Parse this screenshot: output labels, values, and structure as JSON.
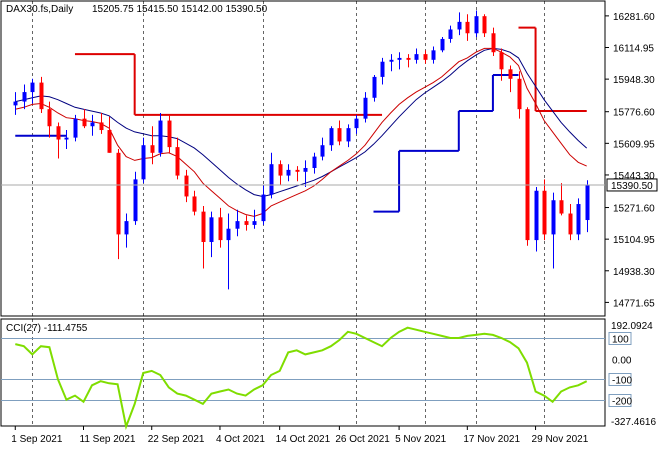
{
  "header": {
    "symbol": "DAX30.fs,Daily",
    "ohlc": "15205.75 15415.50 15142.00 15390.50"
  },
  "price_axis": {
    "ticks": [
      "16281.60",
      "16114.95",
      "15948.30",
      "15776.60",
      "15609.95",
      "15443.30",
      "15271.60",
      "15104.95",
      "14938.30",
      "14771.65"
    ],
    "current_label": "15390.50"
  },
  "cci": {
    "label": "CCI(27) -111.4755",
    "top_label": "192.0924",
    "bottom_label": "-327.4616",
    "levels": [
      "100",
      "0.00",
      "-100",
      "-200"
    ]
  },
  "x_axis": {
    "labels": [
      "1 Sep 2021",
      "11 Sep 2021",
      "22 Sep 2021",
      "4 Oct 2021",
      "14 Oct 2021",
      "26 Oct 2021",
      "5 Nov 2021",
      "17 Nov 2021",
      "29 Nov 2021"
    ]
  },
  "colors": {
    "bull": "#0000ff",
    "bear": "#ff0000",
    "ma_fast": "#cc0000",
    "ma_slow": "#000080",
    "stop_up": "#0000cc",
    "stop_down": "#dd0000",
    "cci_line": "#7fdd00",
    "grid": "#aaaaaa",
    "level": "#7f9fbf"
  },
  "chart_data": [
    {
      "type": "candlestick",
      "title": "DAX30.fs,Daily",
      "ylim": [
        14700,
        16360
      ],
      "x": [
        "2021-09-01",
        "2021-12-03"
      ],
      "candles": [
        {
          "o": 15810,
          "h": 15880,
          "l": 15760,
          "c": 15830
        },
        {
          "o": 15830,
          "h": 15920,
          "l": 15790,
          "c": 15880
        },
        {
          "o": 15880,
          "h": 15950,
          "l": 15820,
          "c": 15930
        },
        {
          "o": 15930,
          "h": 15960,
          "l": 15770,
          "c": 15790
        },
        {
          "o": 15790,
          "h": 15830,
          "l": 15640,
          "c": 15700
        },
        {
          "o": 15700,
          "h": 15720,
          "l": 15530,
          "c": 15630
        },
        {
          "o": 15630,
          "h": 15680,
          "l": 15580,
          "c": 15640
        },
        {
          "o": 15640,
          "h": 15760,
          "l": 15620,
          "c": 15740
        },
        {
          "o": 15740,
          "h": 15790,
          "l": 15690,
          "c": 15700
        },
        {
          "o": 15700,
          "h": 15760,
          "l": 15650,
          "c": 15720
        },
        {
          "o": 15720,
          "h": 15770,
          "l": 15660,
          "c": 15680
        },
        {
          "o": 15680,
          "h": 15750,
          "l": 15560,
          "c": 15560
        },
        {
          "o": 15560,
          "h": 15580,
          "l": 15000,
          "c": 15130
        },
        {
          "o": 15130,
          "h": 15240,
          "l": 15060,
          "c": 15200
        },
        {
          "o": 15200,
          "h": 15460,
          "l": 15180,
          "c": 15420
        },
        {
          "o": 15420,
          "h": 15640,
          "l": 15400,
          "c": 15600
        },
        {
          "o": 15600,
          "h": 15700,
          "l": 15500,
          "c": 15560
        },
        {
          "o": 15560,
          "h": 15770,
          "l": 15540,
          "c": 15730
        },
        {
          "o": 15730,
          "h": 15760,
          "l": 15560,
          "c": 15590
        },
        {
          "o": 15590,
          "h": 15640,
          "l": 15420,
          "c": 15440
        },
        {
          "o": 15440,
          "h": 15470,
          "l": 15300,
          "c": 15330
        },
        {
          "o": 15330,
          "h": 15360,
          "l": 15230,
          "c": 15250
        },
        {
          "o": 15250,
          "h": 15280,
          "l": 14950,
          "c": 15090
        },
        {
          "o": 15090,
          "h": 15250,
          "l": 15010,
          "c": 15220
        },
        {
          "o": 15220,
          "h": 15270,
          "l": 15060,
          "c": 15100
        },
        {
          "o": 15100,
          "h": 15240,
          "l": 14840,
          "c": 15160
        },
        {
          "o": 15160,
          "h": 15260,
          "l": 15120,
          "c": 15200
        },
        {
          "o": 15200,
          "h": 15230,
          "l": 15150,
          "c": 15180
        },
        {
          "o": 15180,
          "h": 15260,
          "l": 15160,
          "c": 15200
        },
        {
          "o": 15200,
          "h": 15390,
          "l": 15180,
          "c": 15340
        },
        {
          "o": 15340,
          "h": 15560,
          "l": 15320,
          "c": 15500
        },
        {
          "o": 15500,
          "h": 15520,
          "l": 15390,
          "c": 15440
        },
        {
          "o": 15440,
          "h": 15500,
          "l": 15410,
          "c": 15470
        },
        {
          "o": 15470,
          "h": 15490,
          "l": 15410,
          "c": 15460
        },
        {
          "o": 15460,
          "h": 15520,
          "l": 15380,
          "c": 15480
        },
        {
          "o": 15480,
          "h": 15560,
          "l": 15450,
          "c": 15540
        },
        {
          "o": 15540,
          "h": 15640,
          "l": 15520,
          "c": 15600
        },
        {
          "o": 15600,
          "h": 15700,
          "l": 15570,
          "c": 15690
        },
        {
          "o": 15690,
          "h": 15730,
          "l": 15600,
          "c": 15620
        },
        {
          "o": 15620,
          "h": 15710,
          "l": 15590,
          "c": 15690
        },
        {
          "o": 15690,
          "h": 15760,
          "l": 15660,
          "c": 15740
        },
        {
          "o": 15740,
          "h": 15880,
          "l": 15720,
          "c": 15850
        },
        {
          "o": 15850,
          "h": 15970,
          "l": 15830,
          "c": 15960
        },
        {
          "o": 15960,
          "h": 16060,
          "l": 15920,
          "c": 16040
        },
        {
          "o": 16040,
          "h": 16080,
          "l": 15990,
          "c": 16050
        },
        {
          "o": 16050,
          "h": 16090,
          "l": 16000,
          "c": 16060
        },
        {
          "o": 16060,
          "h": 16080,
          "l": 16010,
          "c": 16050
        },
        {
          "o": 16050,
          "h": 16110,
          "l": 16030,
          "c": 16080
        },
        {
          "o": 16080,
          "h": 16100,
          "l": 16030,
          "c": 16050
        },
        {
          "o": 16050,
          "h": 16120,
          "l": 16030,
          "c": 16100
        },
        {
          "o": 16100,
          "h": 16170,
          "l": 16090,
          "c": 16160
        },
        {
          "o": 16160,
          "h": 16230,
          "l": 16140,
          "c": 16210
        },
        {
          "o": 16210,
          "h": 16300,
          "l": 16180,
          "c": 16250
        },
        {
          "o": 16250,
          "h": 16290,
          "l": 16150,
          "c": 16190
        },
        {
          "o": 16190,
          "h": 16310,
          "l": 16170,
          "c": 16280
        },
        {
          "o": 16280,
          "h": 16290,
          "l": 16170,
          "c": 16190
        },
        {
          "o": 16190,
          "h": 16220,
          "l": 16070,
          "c": 16090
        },
        {
          "o": 16090,
          "h": 16110,
          "l": 15940,
          "c": 16000
        },
        {
          "o": 16000,
          "h": 16020,
          "l": 15880,
          "c": 15950
        },
        {
          "o": 15950,
          "h": 15990,
          "l": 15740,
          "c": 15790
        },
        {
          "o": 15790,
          "h": 15800,
          "l": 15070,
          "c": 15100
        },
        {
          "o": 15100,
          "h": 15380,
          "l": 15040,
          "c": 15360
        },
        {
          "o": 15360,
          "h": 15420,
          "l": 15100,
          "c": 15130
        },
        {
          "o": 15130,
          "h": 15350,
          "l": 14950,
          "c": 15310
        },
        {
          "o": 15310,
          "h": 15400,
          "l": 15230,
          "c": 15240
        },
        {
          "o": 15240,
          "h": 15290,
          "l": 15100,
          "c": 15130
        },
        {
          "o": 15130,
          "h": 15320,
          "l": 15100,
          "c": 15290
        },
        {
          "o": 15205.75,
          "h": 15415.5,
          "l": 15142,
          "c": 15390.5
        }
      ],
      "ma_fast": [
        15790,
        15800,
        15815,
        15820,
        15800,
        15770,
        15745,
        15740,
        15730,
        15725,
        15715,
        15690,
        15600,
        15540,
        15520,
        15530,
        15535,
        15555,
        15560,
        15540,
        15500,
        15460,
        15400,
        15360,
        15320,
        15280,
        15255,
        15235,
        15225,
        15240,
        15280,
        15300,
        15320,
        15340,
        15360,
        15385,
        15420,
        15460,
        15490,
        15520,
        15555,
        15600,
        15660,
        15720,
        15770,
        15815,
        15850,
        15880,
        15905,
        15930,
        15960,
        16000,
        16040,
        16060,
        16090,
        16110,
        16110,
        16090,
        16065,
        16020,
        15900,
        15820,
        15730,
        15670,
        15610,
        15550,
        15510,
        15490
      ],
      "ma_slow": [
        15830,
        15840,
        15850,
        15860,
        15855,
        15840,
        15820,
        15800,
        15790,
        15780,
        15770,
        15755,
        15720,
        15690,
        15670,
        15660,
        15650,
        15650,
        15645,
        15635,
        15610,
        15585,
        15550,
        15510,
        15470,
        15430,
        15395,
        15365,
        15340,
        15330,
        15340,
        15355,
        15370,
        15385,
        15400,
        15415,
        15435,
        15460,
        15485,
        15510,
        15535,
        15565,
        15605,
        15650,
        15700,
        15750,
        15795,
        15840,
        15875,
        15905,
        15935,
        15970,
        16010,
        16045,
        16075,
        16100,
        16110,
        16105,
        16090,
        16060,
        15980,
        15910,
        15840,
        15780,
        15720,
        15670,
        15625,
        15585
      ],
      "stop_up": [
        {
          "from": 0,
          "to": 6,
          "value": 15650
        },
        {
          "from": 42,
          "to": 45,
          "value": 15250
        },
        {
          "from": 45,
          "to": 52,
          "value": 15570
        },
        {
          "from": 52,
          "to": 56,
          "value": 15780
        },
        {
          "from": 56,
          "to": 59,
          "value": 15970
        }
      ],
      "stop_down": [
        {
          "from": 7,
          "to": 14,
          "value": 16080
        },
        {
          "from": 14,
          "to": 43,
          "value": 15760
        },
        {
          "from": 59,
          "to": 61,
          "value": 16220
        },
        {
          "from": 61,
          "to": 67,
          "value": 15780
        }
      ]
    },
    {
      "type": "line",
      "title": "CCI(27) -111.4755",
      "ylim": [
        -327.4616,
        192.0924
      ],
      "series": [
        {
          "values": [
            70,
            60,
            20,
            60,
            55,
            -100,
            -200,
            -180,
            -210,
            -130,
            -110,
            -120,
            -125,
            -330,
            -220,
            -70,
            -60,
            -80,
            -140,
            -170,
            -180,
            -200,
            -220,
            -170,
            -160,
            -150,
            -170,
            -180,
            -150,
            -130,
            -80,
            -60,
            30,
            40,
            20,
            30,
            40,
            60,
            90,
            130,
            120,
            100,
            80,
            60,
            100,
            130,
            150,
            140,
            130,
            120,
            110,
            100,
            100,
            110,
            115,
            120,
            115,
            100,
            80,
            50,
            -20,
            -160,
            -180,
            -210,
            -160,
            -140,
            -130,
            -110
          ]
        }
      ]
    }
  ]
}
